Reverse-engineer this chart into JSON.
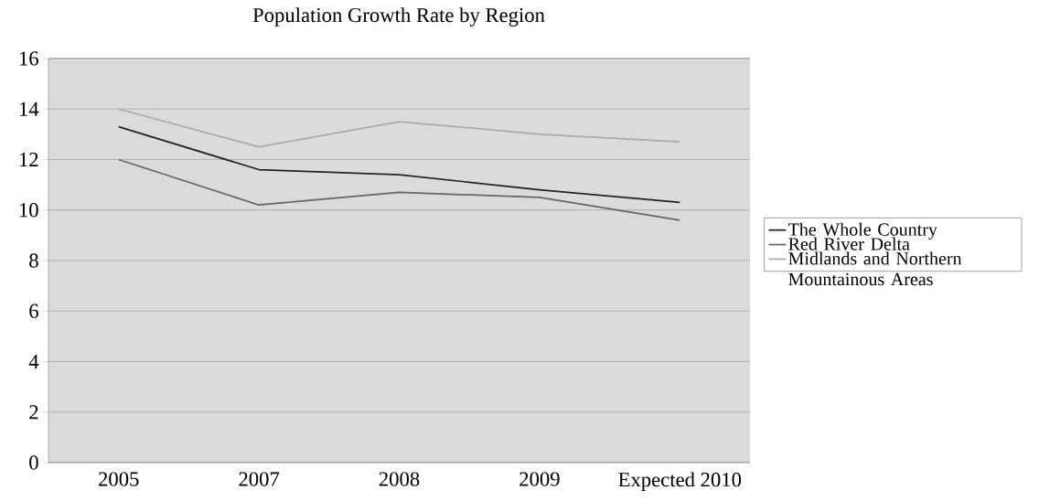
{
  "chart_data": {
    "type": "line",
    "title": "Population Growth Rate by Region",
    "categories": [
      "2005",
      "2007",
      "2008",
      "2009",
      "Expected 2010"
    ],
    "series": [
      {
        "name": "The Whole Country",
        "color": "#222222",
        "values": [
          13.3,
          11.6,
          11.4,
          10.8,
          10.3
        ]
      },
      {
        "name": "Red River Delta",
        "color": "#666666",
        "values": [
          12.0,
          10.2,
          10.7,
          10.5,
          9.6
        ]
      },
      {
        "name": "Midlands and Northern Mountainous Areas",
        "color": "#aaaaaa",
        "values": [
          14.0,
          12.5,
          13.5,
          13.0,
          12.7
        ]
      }
    ],
    "ylim": [
      0,
      16
    ],
    "yticks": [
      0,
      2,
      4,
      6,
      8,
      10,
      12,
      14,
      16
    ],
    "grid": "y",
    "legend": "right",
    "marker": "none",
    "line_style": "solid"
  }
}
